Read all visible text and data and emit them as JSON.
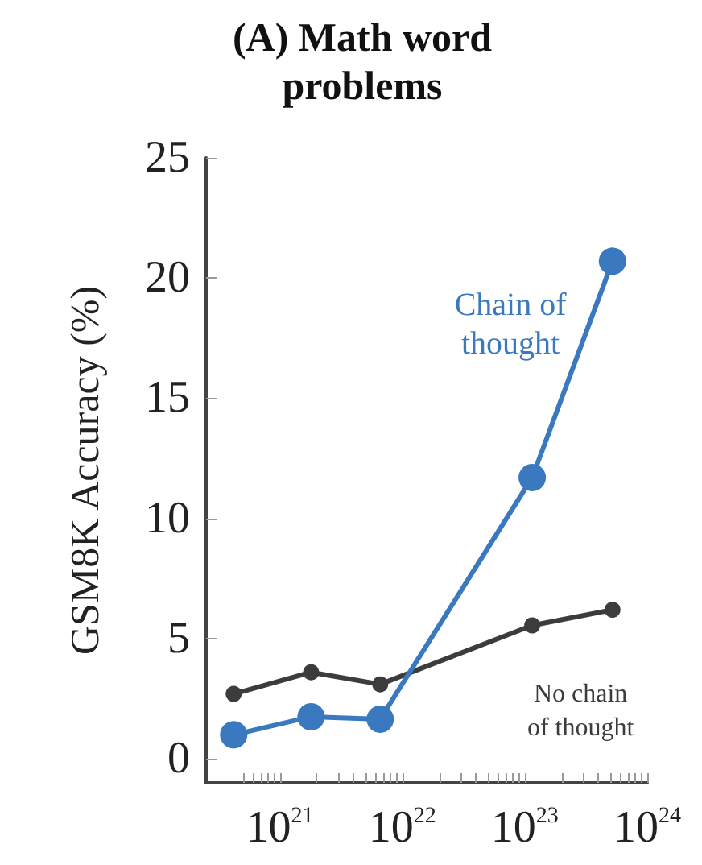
{
  "chart_data": {
    "type": "line",
    "title": "(A) Math word\nproblems",
    "ylabel": "GSM8K Accuracy (%)",
    "x": [
      4.2e+20,
      1.8e+21,
      6.6e+21,
      1.15e+23,
      5.2e+23
    ],
    "series": [
      {
        "name": "No chain\nof thought",
        "color": "#3c3c3c",
        "values": [
          2.7,
          3.6,
          3.1,
          5.55,
          6.2
        ]
      },
      {
        "name": "Chain of\nthought",
        "color": "#3a78c0",
        "values": [
          1.0,
          1.75,
          1.65,
          11.7,
          20.7
        ]
      }
    ],
    "log": "x",
    "xlim": [
      2.5e+20,
      1e+24
    ],
    "xticks": [
      {
        "value": 5e+20,
        "label": null
      },
      {
        "value": 6e+20,
        "label": null
      },
      {
        "value": 7e+20,
        "label": null
      },
      {
        "value": 8e+20,
        "label": null
      },
      {
        "value": 9e+20,
        "label": null
      },
      {
        "value": 1e+21,
        "label": "10$^{21}$"
      },
      {
        "value": 2e+21,
        "label": null
      },
      {
        "value": 3e+21,
        "label": null
      },
      {
        "value": 4e+21,
        "label": null
      },
      {
        "value": 5e+21,
        "label": null
      },
      {
        "value": 6e+21,
        "label": null
      },
      {
        "value": 7e+21,
        "label": null
      },
      {
        "value": 8e+21,
        "label": null
      },
      {
        "value": 9e+21,
        "label": null
      },
      {
        "value": 1e+22,
        "label": "10$^{22}$"
      },
      {
        "value": 2e+22,
        "label": null
      },
      {
        "value": 3e+22,
        "label": null
      },
      {
        "value": 4e+22,
        "label": null
      },
      {
        "value": 5e+22,
        "label": null
      },
      {
        "value": 6e+22,
        "label": null
      },
      {
        "value": 7e+22,
        "label": null
      },
      {
        "value": 8e+22,
        "label": null
      },
      {
        "value": 9e+22,
        "label": null
      },
      {
        "value": 1e+23,
        "label": "10$^{23}$"
      },
      {
        "value": 2e+23,
        "label": null
      },
      {
        "value": 3e+23,
        "label": null
      },
      {
        "value": 4e+23,
        "label": null
      },
      {
        "value": 5e+23,
        "label": null
      },
      {
        "value": 6e+23,
        "label": null
      },
      {
        "value": 7e+23,
        "label": null
      },
      {
        "value": 8e+23,
        "label": null
      },
      {
        "value": 9e+23,
        "label": null
      },
      {
        "value": 1e+24,
        "label": "10$^{24}$"
      }
    ],
    "ylim": [
      -1,
      25
    ],
    "yticks": [
      0,
      5,
      10,
      15,
      20,
      25
    ],
    "grid": false,
    "legend": false,
    "marker": "circle",
    "line_style": "solid"
  }
}
